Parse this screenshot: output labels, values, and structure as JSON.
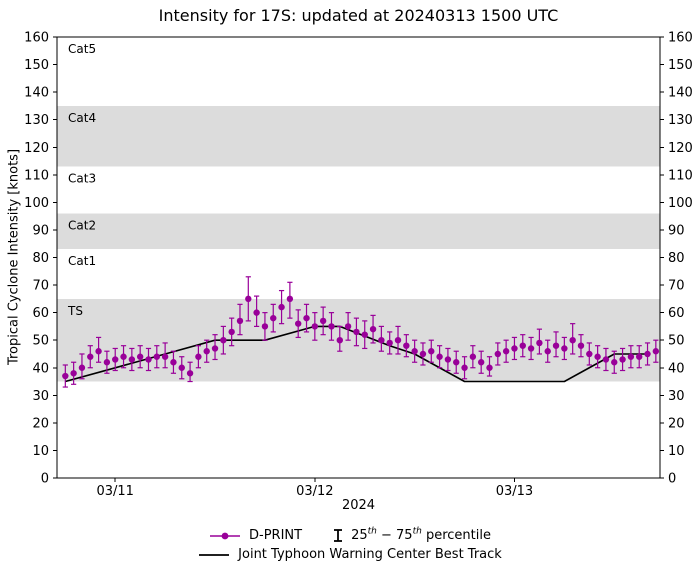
{
  "title": "Intensity for 17S: updated at 20240313 1500 UTC",
  "axes": {
    "ylabel": "Tropical Cyclone Intensity [knots]",
    "xlabel_year": "2024"
  },
  "legend": {
    "dprint": "D-PRINT",
    "p1": "25",
    "p2": "th",
    "p3": " − 75",
    "p4": "th",
    "p5": " percentile",
    "best": "Joint Typhoon Warning Center Best Track"
  },
  "colors": {
    "dprint": "#990099",
    "best_track": "#000000",
    "band": "#dcdcdc",
    "axis": "#000000"
  },
  "chart_data": {
    "type": "scatter",
    "title": "Intensity for 17S: updated at 20240313 1500 UTC",
    "xlabel": "2024",
    "ylabel": "Tropical Cyclone Intensity [knots]",
    "x_encoding": "hours, 0 = first point; ticks at 03/11, 03/12, 03/13",
    "xlim": [
      -1,
      71.5
    ],
    "ylim": [
      0,
      160
    ],
    "yticks": [
      0,
      10,
      20,
      30,
      40,
      50,
      60,
      70,
      80,
      90,
      100,
      110,
      120,
      130,
      140,
      150,
      160
    ],
    "xticks": [
      {
        "h": 6,
        "label": "03/11"
      },
      {
        "h": 30,
        "label": "03/12"
      },
      {
        "h": 54,
        "label": "03/13"
      }
    ],
    "bands": [
      {
        "label": "TS",
        "from": 35,
        "to": 65,
        "shaded": true
      },
      {
        "label": "Cat1",
        "from": 65,
        "to": 83,
        "shaded": false
      },
      {
        "label": "Cat2",
        "from": 83,
        "to": 96,
        "shaded": true
      },
      {
        "label": "Cat3",
        "from": 96,
        "to": 113,
        "shaded": false
      },
      {
        "label": "Cat4",
        "from": 113,
        "to": 135,
        "shaded": true
      },
      {
        "label": "Cat5",
        "from": 135,
        "to": 160,
        "shaded": false
      }
    ],
    "series": [
      {
        "name": "D-PRINT",
        "kind": "errorbar-scatter",
        "note": "points are [hour, intensity, 25th percentile, 75th percentile] in knots",
        "points": [
          [
            0,
            37,
            33,
            41
          ],
          [
            1,
            38,
            34,
            42
          ],
          [
            2,
            40,
            36,
            45
          ],
          [
            3,
            44,
            40,
            48
          ],
          [
            4,
            46,
            42,
            51
          ],
          [
            5,
            42,
            38,
            46
          ],
          [
            6,
            43,
            39,
            47
          ],
          [
            7,
            44,
            40,
            48
          ],
          [
            8,
            43,
            39,
            47
          ],
          [
            9,
            44,
            40,
            48
          ],
          [
            10,
            43,
            39,
            47
          ],
          [
            11,
            44,
            40,
            48
          ],
          [
            12,
            44,
            40,
            49
          ],
          [
            13,
            42,
            38,
            46
          ],
          [
            14,
            40,
            36,
            44
          ],
          [
            15,
            38,
            35,
            42
          ],
          [
            16,
            44,
            40,
            48
          ],
          [
            17,
            46,
            42,
            50
          ],
          [
            18,
            47,
            43,
            52
          ],
          [
            19,
            50,
            45,
            55
          ],
          [
            20,
            53,
            48,
            58
          ],
          [
            21,
            57,
            52,
            63
          ],
          [
            22,
            65,
            57,
            73
          ],
          [
            23,
            60,
            55,
            66
          ],
          [
            24,
            55,
            50,
            60
          ],
          [
            25,
            58,
            53,
            63
          ],
          [
            26,
            62,
            56,
            68
          ],
          [
            27,
            65,
            58,
            71
          ],
          [
            28,
            56,
            51,
            61
          ],
          [
            29,
            58,
            53,
            63
          ],
          [
            30,
            55,
            50,
            60
          ],
          [
            31,
            57,
            52,
            62
          ],
          [
            32,
            55,
            50,
            60
          ],
          [
            33,
            50,
            46,
            55
          ],
          [
            34,
            55,
            50,
            60
          ],
          [
            35,
            53,
            48,
            58
          ],
          [
            36,
            52,
            47,
            57
          ],
          [
            37,
            54,
            49,
            59
          ],
          [
            38,
            50,
            46,
            55
          ],
          [
            39,
            49,
            45,
            53
          ],
          [
            40,
            50,
            45,
            55
          ],
          [
            41,
            48,
            44,
            52
          ],
          [
            42,
            46,
            42,
            50
          ],
          [
            43,
            45,
            41,
            49
          ],
          [
            44,
            46,
            42,
            50
          ],
          [
            45,
            44,
            40,
            48
          ],
          [
            46,
            43,
            39,
            47
          ],
          [
            47,
            42,
            38,
            46
          ],
          [
            48,
            40,
            36,
            44
          ],
          [
            49,
            44,
            40,
            48
          ],
          [
            50,
            42,
            38,
            46
          ],
          [
            51,
            40,
            37,
            44
          ],
          [
            52,
            45,
            41,
            49
          ],
          [
            53,
            46,
            42,
            50
          ],
          [
            54,
            47,
            43,
            51
          ],
          [
            55,
            48,
            44,
            52
          ],
          [
            56,
            47,
            43,
            51
          ],
          [
            57,
            49,
            45,
            54
          ],
          [
            58,
            46,
            42,
            50
          ],
          [
            59,
            48,
            44,
            53
          ],
          [
            60,
            47,
            43,
            51
          ],
          [
            61,
            50,
            45,
            56
          ],
          [
            62,
            48,
            44,
            52
          ],
          [
            63,
            45,
            41,
            49
          ],
          [
            64,
            44,
            40,
            48
          ],
          [
            65,
            43,
            39,
            47
          ],
          [
            66,
            42,
            38,
            46
          ],
          [
            67,
            43,
            39,
            47
          ],
          [
            68,
            44,
            40,
            48
          ],
          [
            69,
            44,
            40,
            48
          ],
          [
            70,
            45,
            41,
            49
          ],
          [
            71,
            46,
            42,
            50
          ]
        ]
      },
      {
        "name": "Joint Typhoon Warning Center Best Track",
        "kind": "line",
        "points": [
          [
            0,
            35
          ],
          [
            6,
            40
          ],
          [
            12,
            45
          ],
          [
            18,
            50
          ],
          [
            24,
            50
          ],
          [
            30,
            55
          ],
          [
            33,
            55
          ],
          [
            39,
            48
          ],
          [
            42,
            45
          ],
          [
            48,
            35
          ],
          [
            60,
            35
          ],
          [
            66,
            45
          ],
          [
            70,
            45
          ]
        ]
      }
    ]
  }
}
